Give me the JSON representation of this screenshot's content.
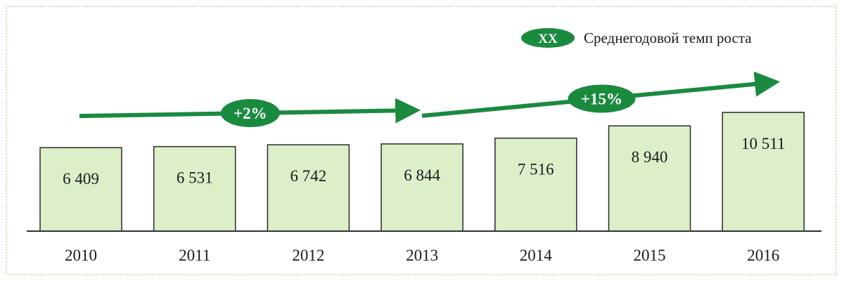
{
  "chart_data": {
    "type": "bar",
    "categories": [
      "2010",
      "2011",
      "2012",
      "2013",
      "2014",
      "2015",
      "2016"
    ],
    "values": [
      6409,
      6531,
      6742,
      6844,
      7516,
      8940,
      10511
    ],
    "value_labels": [
      "6 409",
      "6 531",
      "6 742",
      "6 844",
      "7 516",
      "8 940",
      "10 511"
    ],
    "title": "",
    "xlabel": "",
    "ylabel": "",
    "grid": false,
    "legend": {
      "placement": "top-right",
      "marker": "XX",
      "text": "Среднегодовой темп роста"
    },
    "growth_annotations": [
      {
        "label": "+2%",
        "from_category": "2010",
        "to_category": "2013"
      },
      {
        "label": "+15%",
        "from_category": "2013",
        "to_category": "2016"
      }
    ]
  },
  "colors": {
    "bar_fill": "#dcefc9",
    "bar_stroke": "#2b2b2b",
    "accent": "#1a8a3f",
    "axis": "#333333",
    "text": "#1a1a1a"
  }
}
